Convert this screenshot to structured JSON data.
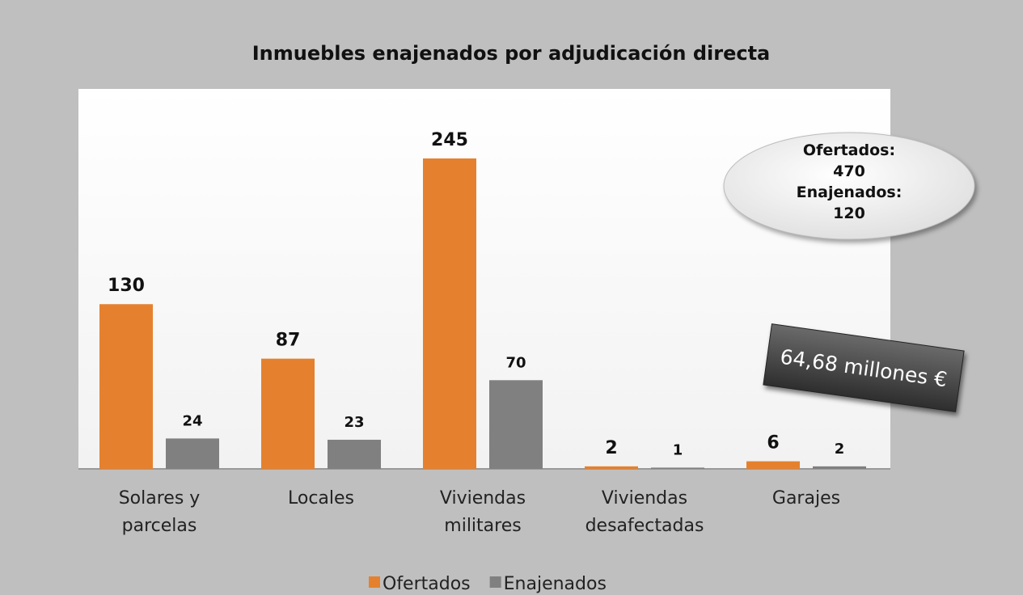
{
  "chart_data": {
    "type": "bar",
    "title": "Inmuebles enajenados por adjudicación directa",
    "categories": [
      "Solares y\nparcelas",
      "Locales",
      "Viviendas\nmilitares",
      "Viviendas\ndesafectadas",
      "Garajes"
    ],
    "series": [
      {
        "name": "Ofertados",
        "color": "#e5812e",
        "values": [
          130,
          87,
          245,
          2,
          6
        ]
      },
      {
        "name": "Enajenados",
        "color": "#808080",
        "values": [
          24,
          23,
          70,
          1,
          2
        ]
      }
    ],
    "annotations": {
      "summary": [
        "Ofertados:",
        "470",
        "Enajenados:",
        "120"
      ],
      "amount": "64,68 millones €"
    },
    "legend": "bottom"
  }
}
